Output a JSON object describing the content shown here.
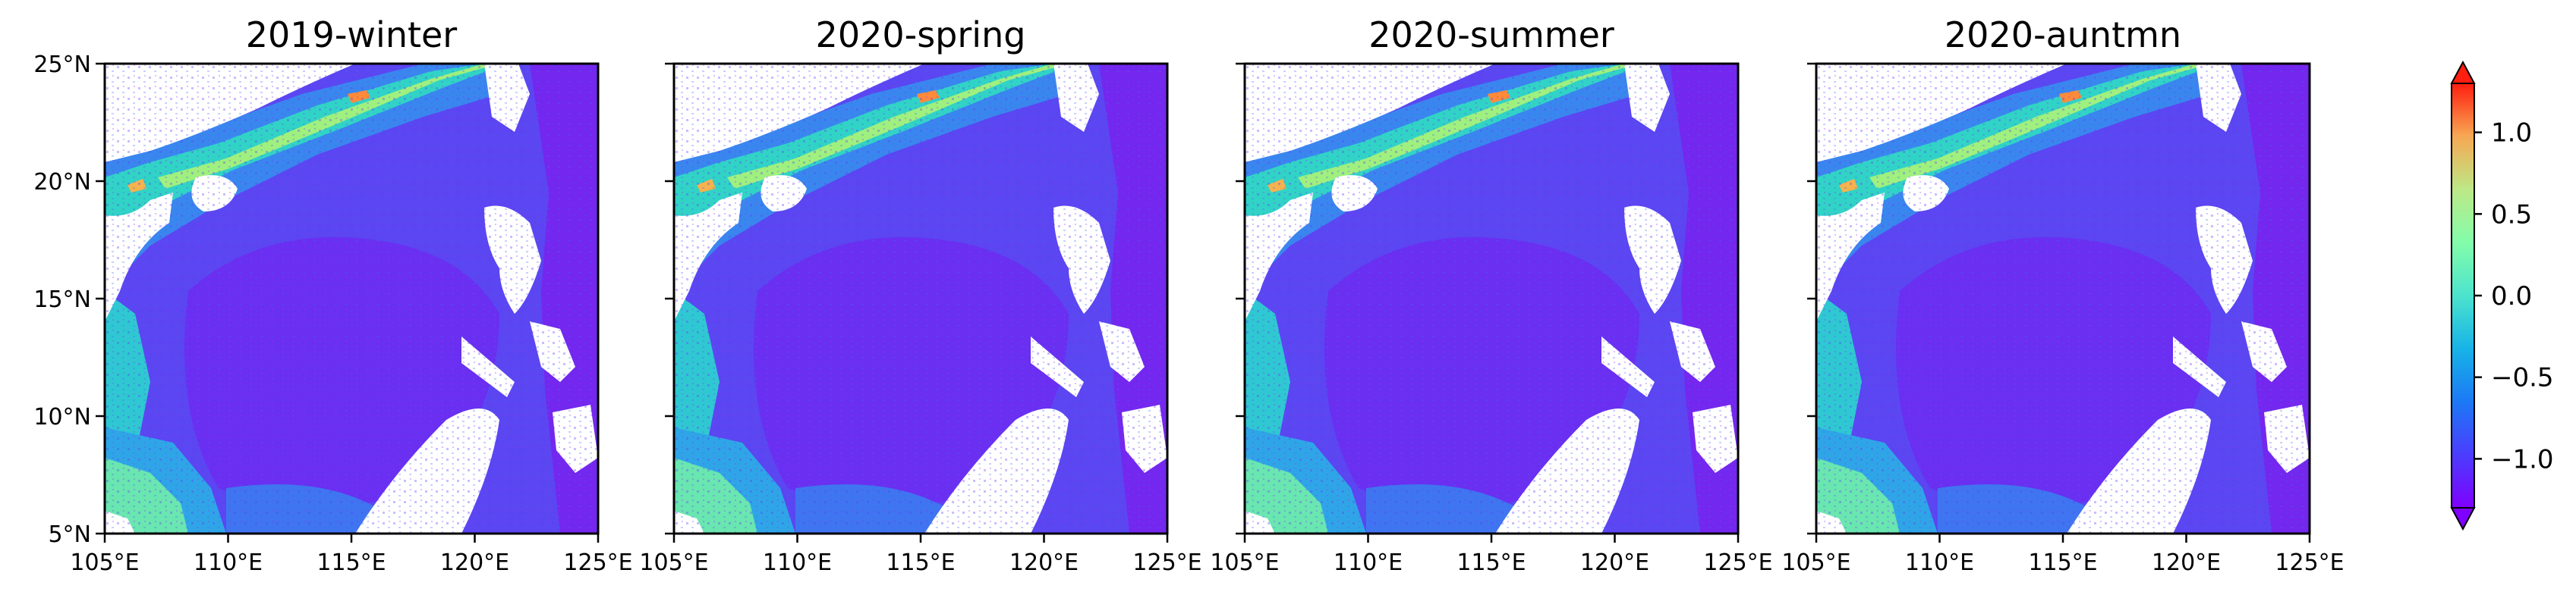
{
  "figure": {
    "panels": [
      {
        "title": "2019-winter",
        "show_lat_labels": true
      },
      {
        "title": "2020-spring",
        "show_lat_labels": false
      },
      {
        "title": "2020-summer",
        "show_lat_labels": false
      },
      {
        "title": "2020-auntmn",
        "show_lat_labels": false
      }
    ],
    "lat_ticks": [
      "25°N",
      "20°N",
      "15°N",
      "10°N",
      "5°N"
    ],
    "lon_ticks": [
      "105°E",
      "110°E",
      "115°E",
      "120°E",
      "125°E"
    ],
    "colorbar": {
      "colormap": "rainbow",
      "range": [
        -1.3,
        1.3
      ],
      "extend": "both",
      "tick_values": [
        1.0,
        0.5,
        0.0,
        -0.5,
        -1.0
      ],
      "tick_labels": [
        "1.0",
        "0.5",
        "0.0",
        "−0.5",
        "−1.0"
      ]
    },
    "colors": {
      "land": "#ffffff",
      "offshore": "#7a2cf0",
      "deep_basin": "#6d1ff2",
      "shelf": "#2f8af0",
      "coast": "#2fe0c2",
      "nearshore": "#bff26a",
      "river_plume": "#ff8a3a"
    }
  }
}
